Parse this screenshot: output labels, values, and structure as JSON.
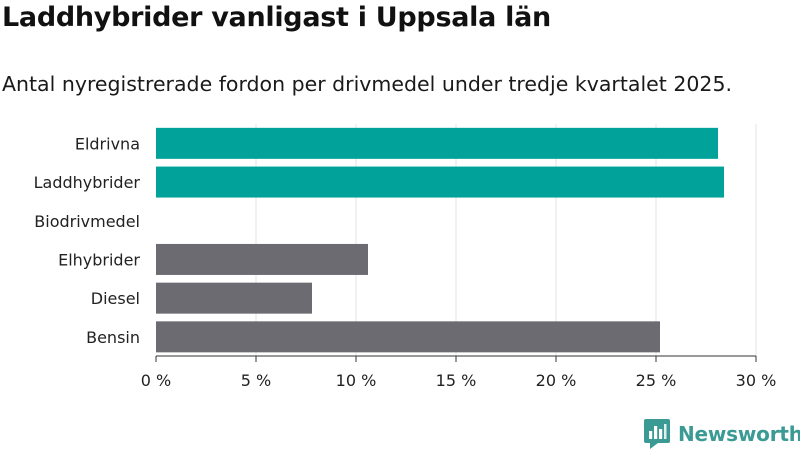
{
  "title": "Laddhybrider vanligast i Uppsala län",
  "subtitle": "Antal nyregistrerade fordon per drivmedel under tredje kvartalet 2025.",
  "brand": {
    "name": "Newsworthy",
    "icon": "newsworthy-logo-icon",
    "color": "#3b9a94"
  },
  "colors": {
    "highlight": "#00a29a",
    "default": "#6c6b72",
    "grid": "#e3e3e3",
    "axis": "#333333"
  },
  "chart_data": {
    "type": "bar",
    "orientation": "horizontal",
    "categories": [
      "Eldrivna",
      "Laddhybrider",
      "Biodrivmedel",
      "Elhybrider",
      "Diesel",
      "Bensin"
    ],
    "values": [
      28.1,
      28.4,
      0,
      10.6,
      7.8,
      25.2
    ],
    "highlighted": [
      "Eldrivna",
      "Laddhybrider"
    ],
    "xlim": [
      0,
      30
    ],
    "xticks": [
      0,
      5,
      10,
      15,
      20,
      25,
      30
    ],
    "xtick_labels": [
      "0 %",
      "5 %",
      "10 %",
      "15 %",
      "20 %",
      "25 %",
      "30 %"
    ],
    "grid": true,
    "xlabel": "",
    "ylabel": ""
  }
}
